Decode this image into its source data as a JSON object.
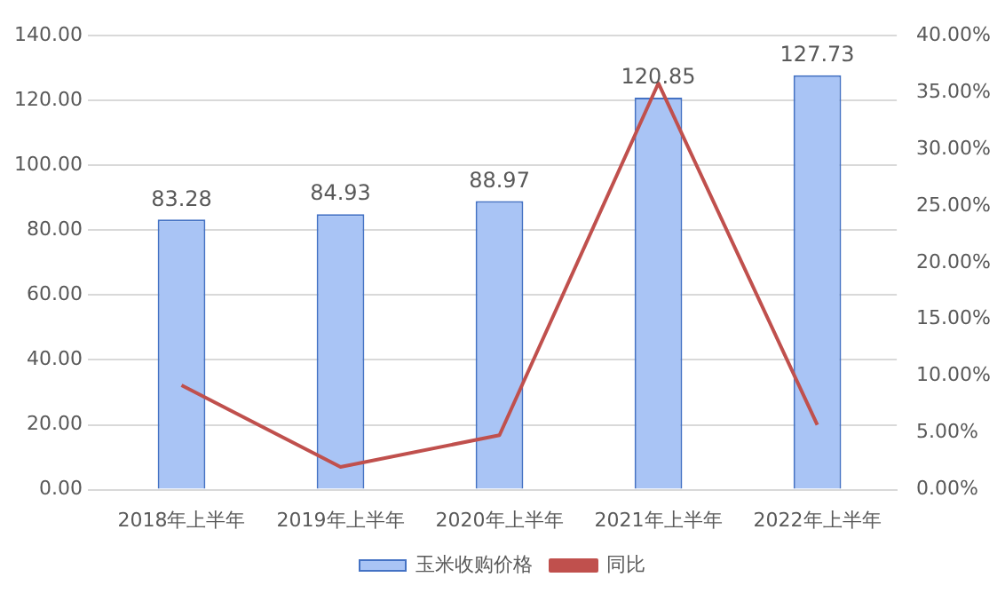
{
  "chart_data": {
    "type": "bar",
    "categories": [
      "2018年上半年",
      "2019年上半年",
      "2020年上半年",
      "2021年上半年",
      "2022年上半年"
    ],
    "series": [
      {
        "name": "玉米收购价格",
        "color": "#a9c4f5",
        "values": [
          83.28,
          84.93,
          88.97,
          120.85,
          127.73
        ],
        "value_labels": [
          "83.28",
          "84.93",
          "88.97",
          "120.85",
          "127.73"
        ]
      },
      {
        "name": "同比",
        "type": "line",
        "axis": "y2",
        "color": "#c0504d",
        "values": [
          9.2,
          2.0,
          4.8,
          35.8,
          5.7
        ]
      }
    ],
    "ylim": [
      0,
      140
    ],
    "yticks": [
      {
        "value": 0,
        "label": "0.00"
      },
      {
        "value": 20,
        "label": "20.00"
      },
      {
        "value": 40,
        "label": "40.00"
      },
      {
        "value": 60,
        "label": "60.00"
      },
      {
        "value": 80,
        "label": "80.00"
      },
      {
        "value": 100,
        "label": "100.00"
      },
      {
        "value": 120,
        "label": "120.00"
      },
      {
        "value": 140,
        "label": "140.00"
      }
    ],
    "y2lim": [
      0,
      40
    ],
    "y2ticks": [
      {
        "value": 0,
        "label": "0.00%"
      },
      {
        "value": 5,
        "label": "5.00%"
      },
      {
        "value": 10,
        "label": "10.00%"
      },
      {
        "value": 15,
        "label": "15.00%"
      },
      {
        "value": 20,
        "label": "20.00%"
      },
      {
        "value": 25,
        "label": "25.00%"
      },
      {
        "value": 30,
        "label": "30.00%"
      },
      {
        "value": 35,
        "label": "35.00%"
      },
      {
        "value": 40,
        "label": "40.00%"
      }
    ],
    "grid": "y",
    "legend": "bottom",
    "marker": "none"
  }
}
